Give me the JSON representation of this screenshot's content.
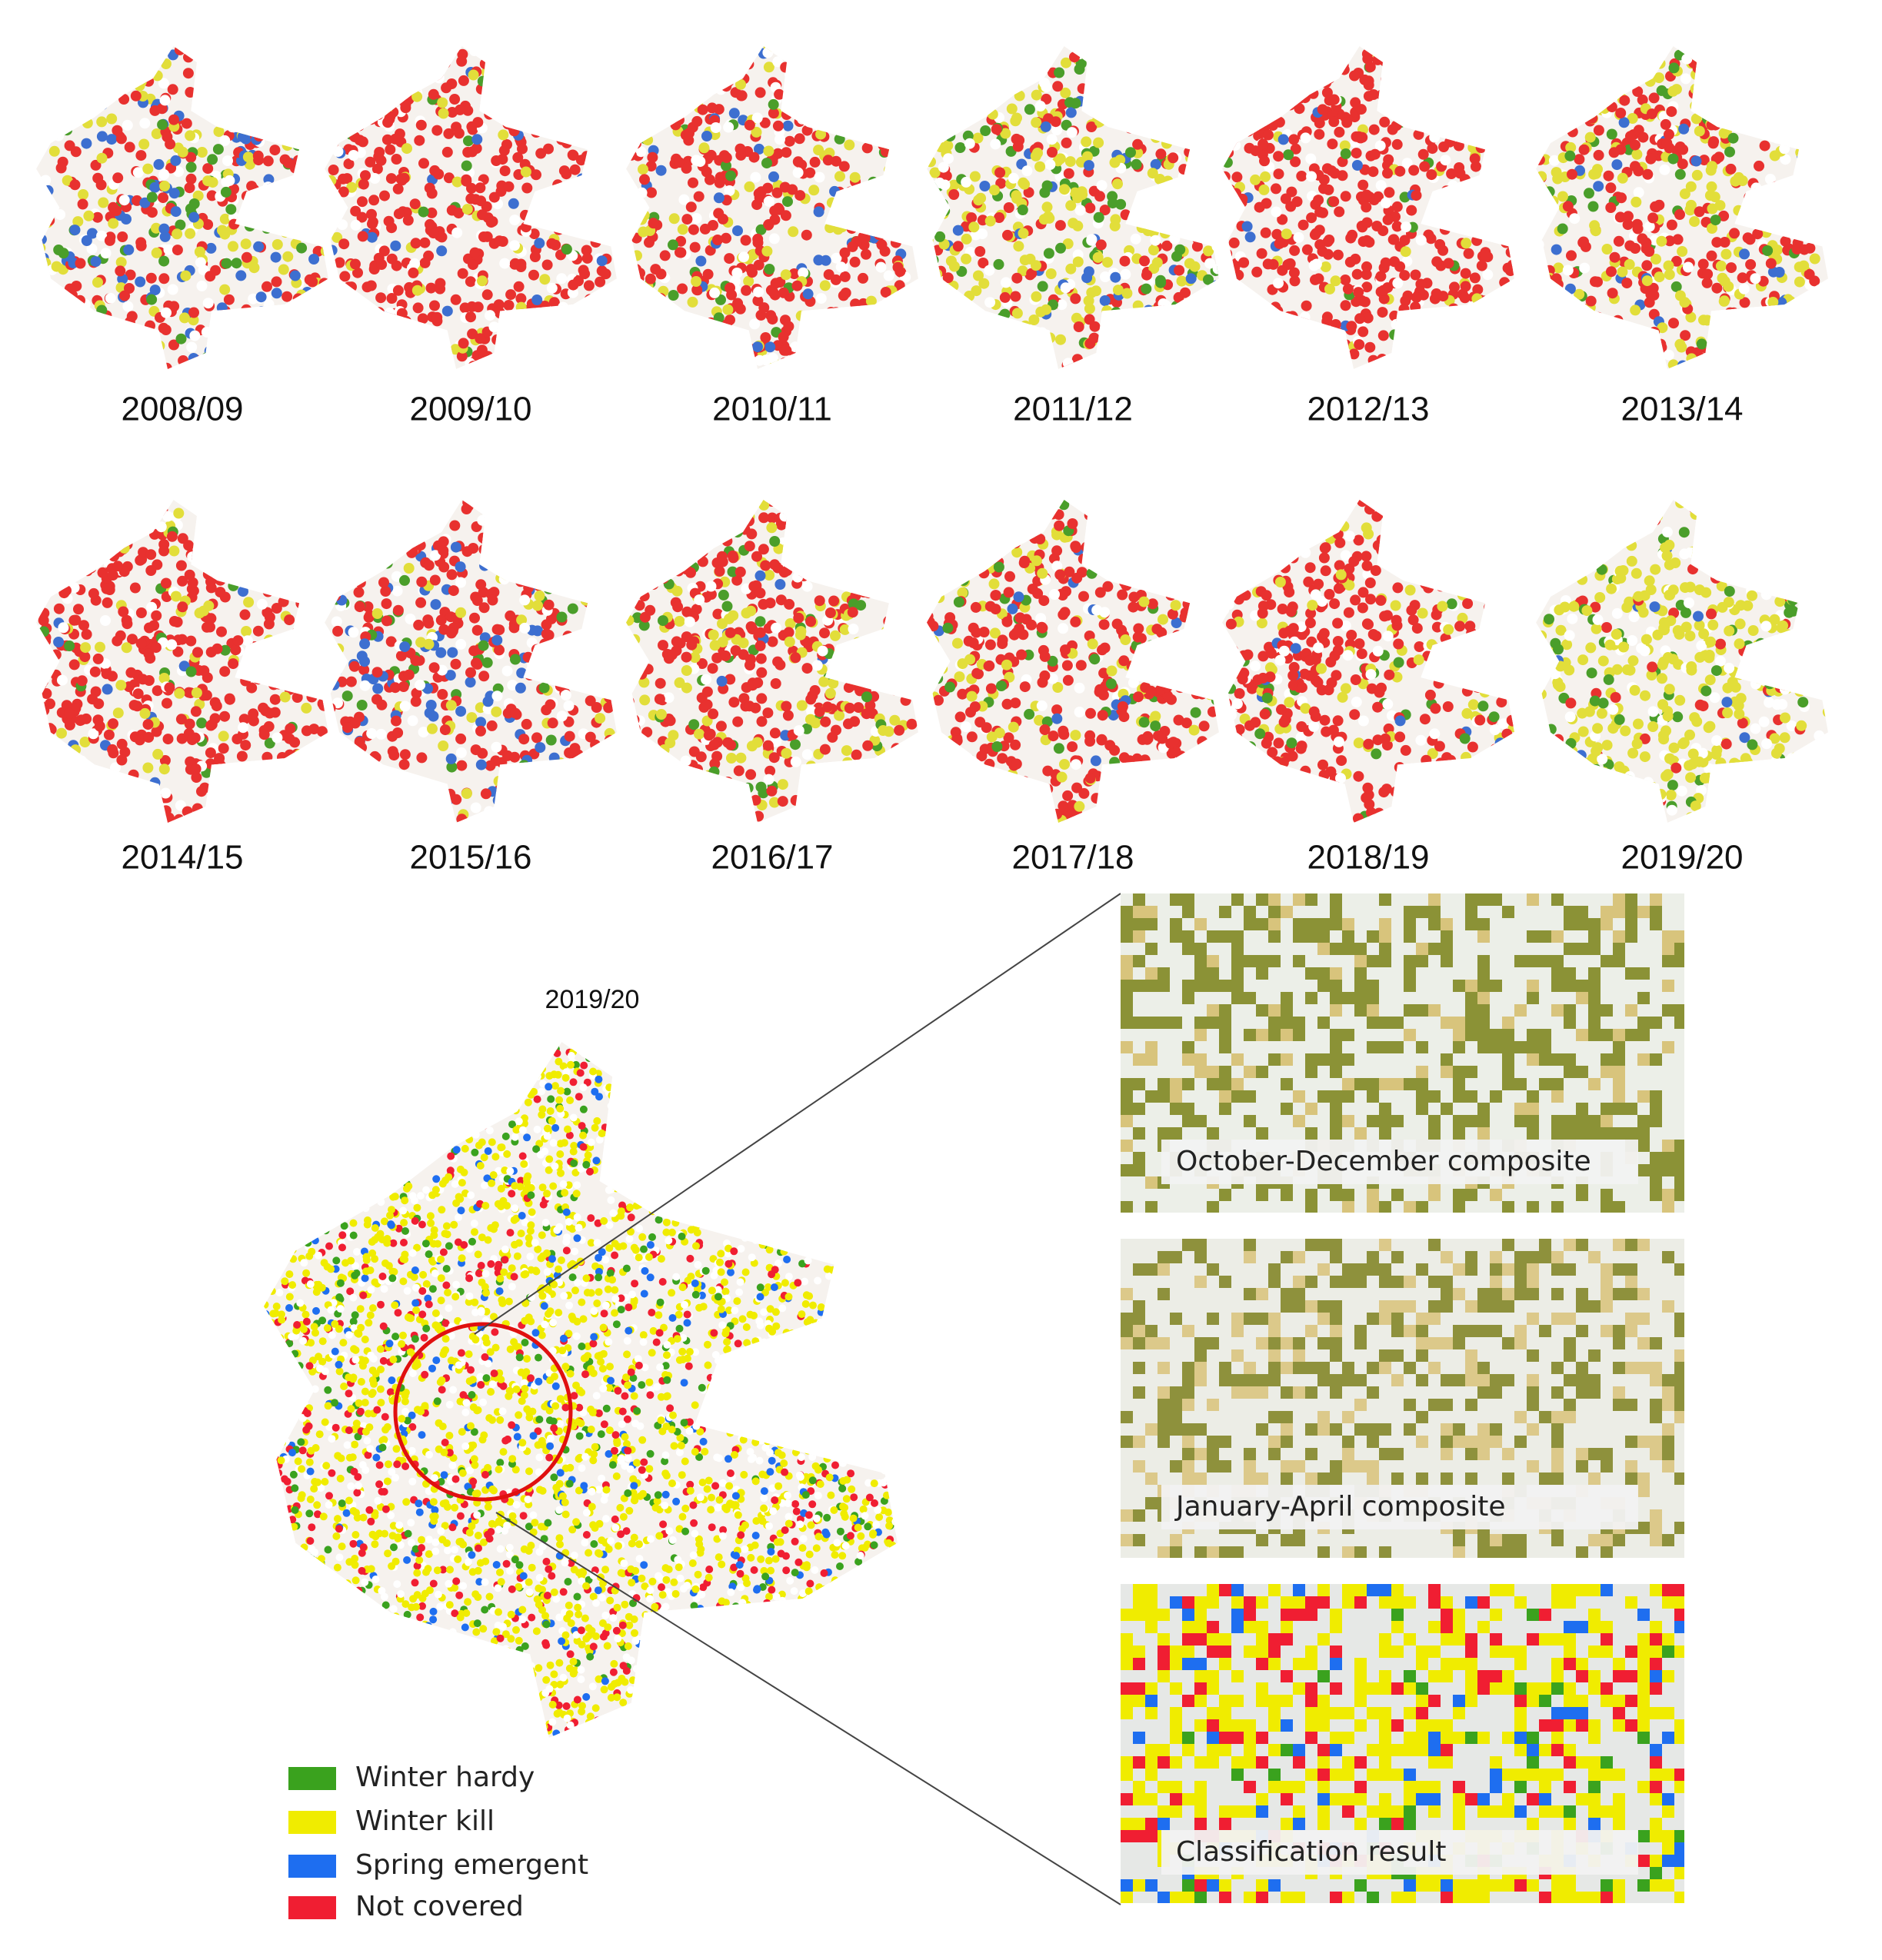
{
  "maps": [
    {
      "label": "2008/09"
    },
    {
      "label": "2009/10"
    },
    {
      "label": "2010/11"
    },
    {
      "label": "2011/12"
    },
    {
      "label": "2012/13"
    },
    {
      "label": "2013/14"
    },
    {
      "label": "2014/15"
    },
    {
      "label": "2015/16"
    },
    {
      "label": "2016/17"
    },
    {
      "label": "2017/18"
    },
    {
      "label": "2018/19"
    },
    {
      "label": "2019/20"
    }
  ],
  "detail": {
    "title": "2019/20"
  },
  "panels": [
    {
      "caption": "October-December composite"
    },
    {
      "caption": "January-April composite"
    },
    {
      "caption": "Classification result"
    }
  ],
  "legend": [
    {
      "label": "Winter hardy",
      "color": "#3aa21e"
    },
    {
      "label": "Winter kill",
      "color": "#f0ec00"
    },
    {
      "label": "Spring emergent",
      "color": "#1e6ef0"
    },
    {
      "label": "Not covered",
      "color": "#f01e32"
    }
  ]
}
